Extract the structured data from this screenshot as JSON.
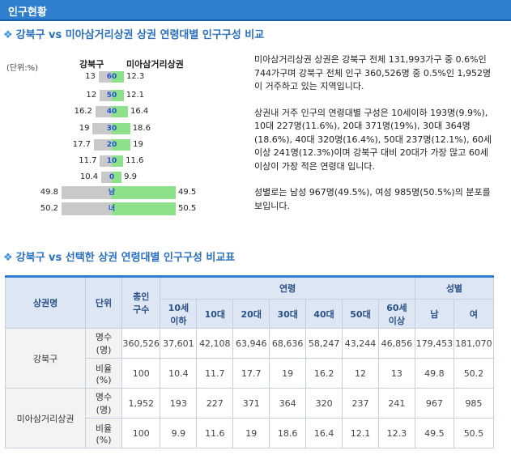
{
  "header": {
    "title": "인구현황"
  },
  "section1": {
    "title": "강북구 vs 미아삼거리상권 상권 연령대별 인구구성 비교"
  },
  "section2": {
    "title": "강북구 vs 선택한 상권 연령대별 인구구성 비교표"
  },
  "chart_data": {
    "type": "bar",
    "unit_label": "(단위:%)",
    "left_legend": "강북구",
    "right_legend": "미아삼거리상권",
    "categories": [
      "60",
      "50",
      "40",
      "30",
      "20",
      "10",
      "0",
      "남",
      "녀"
    ],
    "series": [
      {
        "name": "강북구",
        "values": [
          13,
          12,
          16.2,
          19,
          17.7,
          11.7,
          10.4,
          49.8,
          50.2
        ]
      },
      {
        "name": "미아삼거리상권",
        "values": [
          12.3,
          12.1,
          16.4,
          18.6,
          19,
          11.6,
          9.9,
          49.5,
          50.5
        ]
      }
    ],
    "left_labels": [
      "13",
      "12",
      "16.2",
      "19",
      "17.7",
      "11.7",
      "10.4",
      "49.8",
      "50.2"
    ],
    "right_labels": [
      "12.3",
      "12.1",
      "16.4",
      "18.6",
      "19",
      "11.6",
      "9.9",
      "49.5",
      "50.5"
    ]
  },
  "description": {
    "p1": "미아삼거리상권 상권은 강북구 전체 131,993가구 중 0.6%인 744가구며 강북구 전체 인구 360,526명 중 0.5%인 1,952명이 거주하고 있는 지역입니다.",
    "p2": "상권내 거주 인구의 연령대별 구성은 10세이하 193명(9.9%), 10대 227명(11.6%), 20대 371명(19%), 30대 364명(18.6%), 40대 320명(16.4%), 50대 237명(12.1%), 60세 이상 241명(12.3%)이며 강북구 대비 20대가 가장 많고 60세 이상이 가장 적은 연령대 입니다.",
    "p3": "성별로는 남성 967명(49.5%), 여성 985명(50.5%)의 분포를 보입니다."
  },
  "table": {
    "h_region": "상권명",
    "h_unit": "단위",
    "h_total": "총인\n구수",
    "h_age": "연령",
    "h_gender": "성별",
    "ages": [
      "10세\n이하",
      "10대",
      "20대",
      "30대",
      "40대",
      "50대",
      "60세\n이상"
    ],
    "genders": [
      "남",
      "여"
    ],
    "rows": [
      {
        "region": "강북구",
        "count_unit": "명수\n(명)",
        "counts": [
          "360,526",
          "37,601",
          "42,108",
          "63,946",
          "68,636",
          "58,247",
          "43,244",
          "46,856",
          "179,453",
          "181,070"
        ],
        "ratio_unit": "비율\n(%)",
        "ratios": [
          "100",
          "10.4",
          "11.7",
          "17.7",
          "19",
          "16.2",
          "12",
          "13",
          "49.8",
          "50.2"
        ]
      },
      {
        "region": "미아삼거리상권",
        "count_unit": "명수\n(명)",
        "counts": [
          "1,952",
          "193",
          "227",
          "371",
          "364",
          "320",
          "237",
          "241",
          "967",
          "985"
        ],
        "ratio_unit": "비율\n(%)",
        "ratios": [
          "100",
          "9.9",
          "11.6",
          "19",
          "18.6",
          "16.4",
          "12.1",
          "12.3",
          "49.5",
          "50.5"
        ]
      }
    ]
  }
}
